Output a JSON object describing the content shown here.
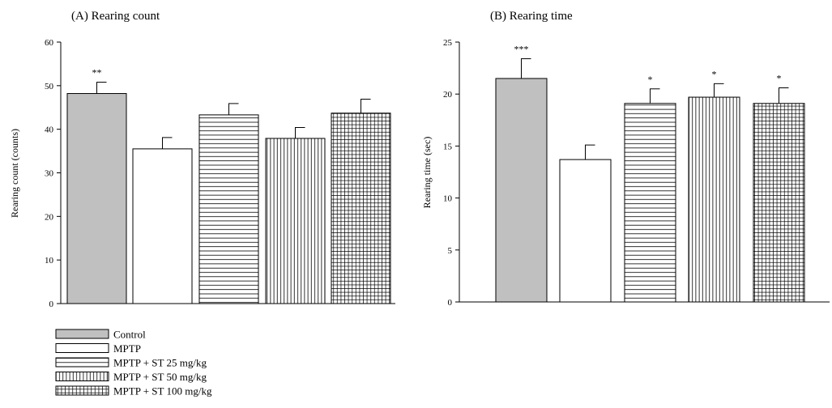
{
  "groups": [
    {
      "name": "Control",
      "pattern": "solid-gray",
      "color": "#c0c0c0"
    },
    {
      "name": "MPTP",
      "pattern": "white"
    },
    {
      "name": "MPTP + ST 25 mg/kg",
      "pattern": "horizontal"
    },
    {
      "name": "MPTP + ST 50 mg/kg",
      "pattern": "vertical"
    },
    {
      "name": "MPTP + ST 100 mg/kg",
      "pattern": "grid"
    }
  ],
  "chart_data": [
    {
      "type": "bar",
      "title": "(A) Rearing count",
      "ylabel": "Rearing count (counts)",
      "xlabel": "",
      "ylim": [
        0,
        60
      ],
      "yticks": [
        0,
        10,
        20,
        30,
        40,
        50,
        60
      ],
      "categories": [
        "Control",
        "MPTP",
        "MPTP + ST 25 mg/kg",
        "MPTP + ST 50 mg/kg",
        "MPTP + ST 100 mg/kg"
      ],
      "values": [
        48.2,
        35.5,
        43.3,
        37.9,
        43.7
      ],
      "errors": [
        2.6,
        2.6,
        2.6,
        2.5,
        3.2
      ],
      "significance": [
        "**",
        "",
        "",
        "",
        ""
      ],
      "grid": false,
      "legend": "bottom-left"
    },
    {
      "type": "bar",
      "title": "(B) Rearing time",
      "ylabel": "Rearing time (sec)",
      "xlabel": "",
      "ylim": [
        0,
        25
      ],
      "yticks": [
        0,
        5,
        10,
        15,
        20,
        25
      ],
      "categories": [
        "Control",
        "MPTP",
        "MPTP + ST 25 mg/kg",
        "MPTP + ST 50 mg/kg",
        "MPTP + ST 100 mg/kg"
      ],
      "values": [
        21.5,
        13.7,
        19.1,
        19.7,
        19.1
      ],
      "errors": [
        1.9,
        1.4,
        1.4,
        1.3,
        1.5
      ],
      "significance": [
        "***",
        "",
        "*",
        "*",
        "*"
      ],
      "grid": false
    }
  ]
}
